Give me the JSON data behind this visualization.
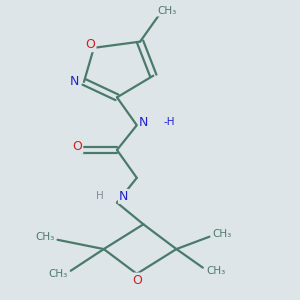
{
  "bg_color": "#dde5e8",
  "bond_color": "#4a7a6a",
  "bond_width": 1.6,
  "N_color": "#2222cc",
  "O_color": "#cc2222",
  "font_size_atom": 9,
  "font_size_small": 7.5,
  "xlim": [
    0.05,
    0.95
  ],
  "ylim": [
    0.02,
    0.98
  ]
}
